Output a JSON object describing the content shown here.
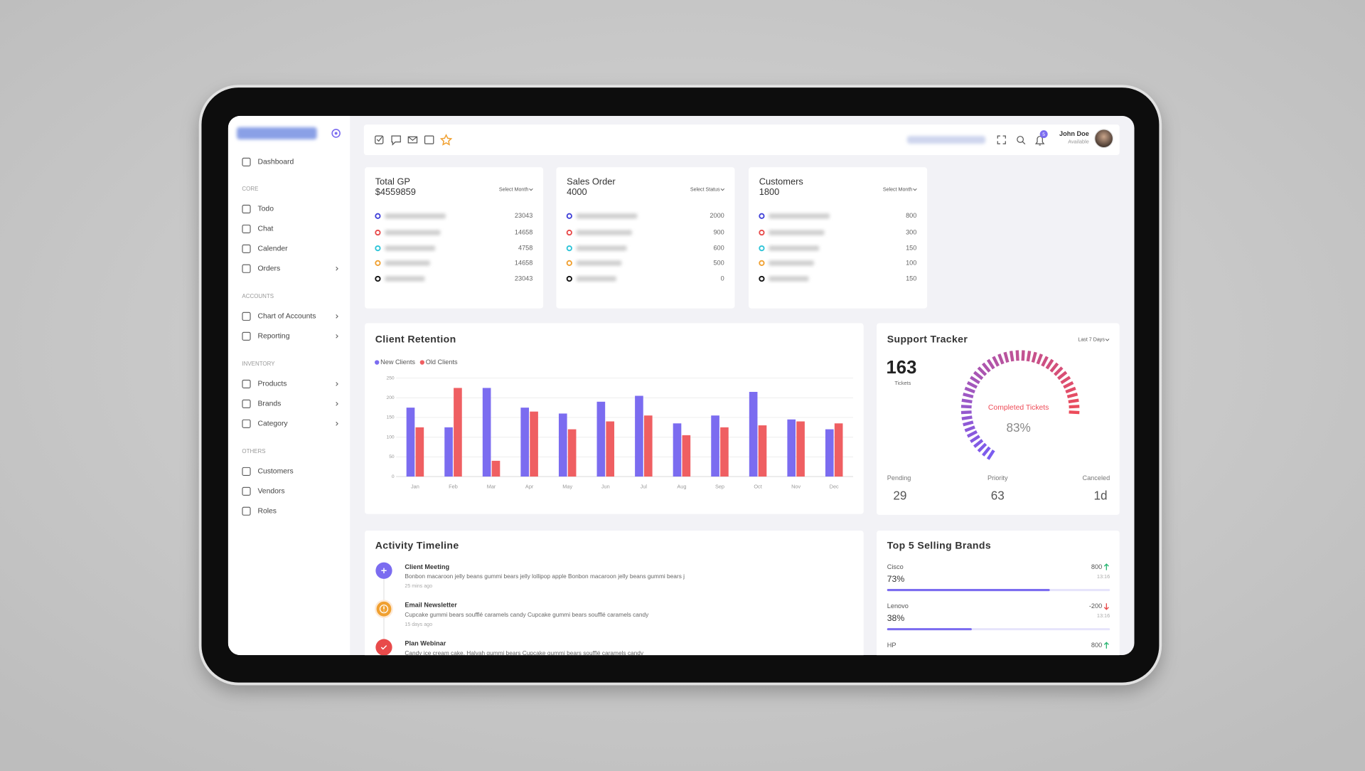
{
  "header": {
    "user_name": "John Doe",
    "user_status": "Available",
    "notification_count": 5
  },
  "sidebar": {
    "menu": [
      {
        "label": "Dashboard"
      }
    ],
    "sections": [
      {
        "title": "CORE",
        "items": [
          {
            "label": "Todo"
          },
          {
            "label": "Chat"
          },
          {
            "label": "Calender"
          },
          {
            "label": "Orders",
            "expandable": true
          }
        ]
      },
      {
        "title": "ACCOUNTS",
        "items": [
          {
            "label": "Chart of Accounts",
            "expandable": true
          },
          {
            "label": "Reporting",
            "expandable": true
          }
        ]
      },
      {
        "title": "INVENTORY",
        "items": [
          {
            "label": "Products",
            "expandable": true
          },
          {
            "label": "Brands",
            "expandable": true
          },
          {
            "label": "Category",
            "expandable": true
          }
        ]
      },
      {
        "title": "OTHERS",
        "items": [
          {
            "label": "Customers"
          },
          {
            "label": "Vendors"
          },
          {
            "label": "Roles"
          }
        ]
      }
    ]
  },
  "stat_cards": [
    {
      "title": "Total GP",
      "value": "$4559859",
      "filter": "Select Month",
      "rows": [
        23043,
        14658,
        4758,
        14658,
        23043
      ]
    },
    {
      "title": "Sales Order",
      "value": "4000",
      "filter": "Select Status",
      "rows": [
        2000,
        900,
        600,
        500,
        0
      ]
    },
    {
      "title": "Customers",
      "value": "1800",
      "filter": "Select Month",
      "rows": [
        800,
        300,
        150,
        100,
        150
      ]
    }
  ],
  "chart_data": {
    "type": "bar",
    "title": "Client Retention",
    "categories": [
      "Jan",
      "Feb",
      "Mar",
      "Apr",
      "May",
      "Jun",
      "Jul",
      "Aug",
      "Sep",
      "Oct",
      "Nov",
      "Dec"
    ],
    "series": [
      {
        "name": "New Clients",
        "color": "#7b6cf0",
        "values": [
          175,
          125,
          225,
          175,
          160,
          190,
          205,
          135,
          155,
          215,
          145,
          120
        ]
      },
      {
        "name": "Old Clients",
        "color": "#ef5f62",
        "values": [
          125,
          225,
          40,
          165,
          120,
          140,
          155,
          105,
          125,
          130,
          140,
          135
        ]
      }
    ],
    "ylim": [
      0,
      250
    ],
    "yticks": [
      0,
      50,
      100,
      150,
      200,
      250
    ],
    "grid": true
  },
  "support_tracker": {
    "title": "Support Tracker",
    "filter": "Last 7 Days",
    "tickets": 163,
    "tickets_label": "Tickets",
    "gauge_label": "Completed Tickets",
    "completed": 83,
    "completed_label": "83%",
    "stats": [
      {
        "label": "Pending",
        "value": 29
      },
      {
        "label": "Priority",
        "value": 63
      },
      {
        "label": "Canceled",
        "value": "1d"
      }
    ]
  },
  "activity_timeline": {
    "title": "Activity Timeline",
    "items": [
      {
        "title": "Client Meeting",
        "text": "Bonbon macaroon jelly beans gummi bears jelly lollipop apple Bonbon macaroon jelly beans gummi bears j",
        "time": "25 mins ago"
      },
      {
        "title": "Email Newsletter",
        "text": "Cupcake gummi bears soufflé caramels candy Cupcake gummi bears soufflé caramels candy",
        "time": "15 days ago"
      },
      {
        "title": "Plan Webinar",
        "text": "Candy ice cream cake. Halvah gummi bears Cupcake gummi bears soufflé caramels candy"
      }
    ]
  },
  "top_brands": {
    "title": "Top 5 Selling Brands",
    "brands": [
      {
        "name": "Cisco",
        "share": 73,
        "share_label": "73%",
        "sales": 800,
        "time": "13:16",
        "trend": "up"
      },
      {
        "name": "Lenovo",
        "share": 38,
        "share_label": "38%",
        "sales": -200,
        "time": "13:16",
        "trend": "down"
      },
      {
        "name": "HP",
        "sales": 800,
        "trend": "up"
      }
    ]
  }
}
